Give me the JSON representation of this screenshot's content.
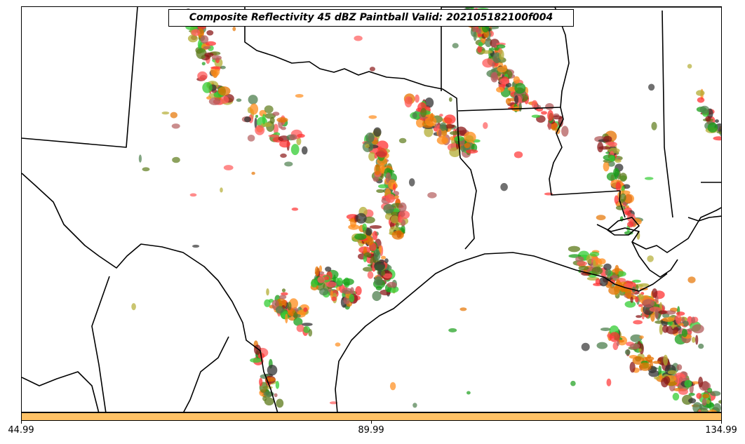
{
  "title": "Composite Reflectivity 45 dBZ Paintball Valid: 202105182100f004",
  "colorbar": {
    "color": "#ffc266",
    "ticks": [
      "44.99",
      "89.99",
      "134.99"
    ]
  },
  "paint_colors": [
    "#ff3333",
    "#ff8c1a",
    "#1a9e1a",
    "#33cc33",
    "#8b1a1a",
    "#5c7a1a",
    "#b3ac33",
    "#b35c5c",
    "#333333",
    "#ff5a5a",
    "#e67300",
    "#4d7f4d"
  ]
}
